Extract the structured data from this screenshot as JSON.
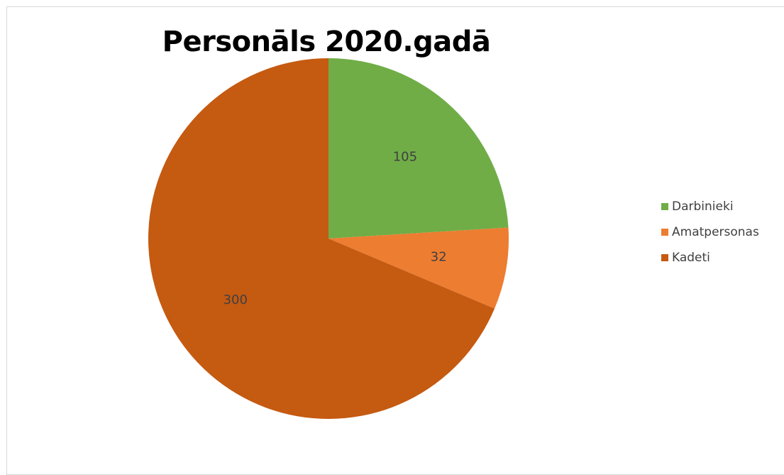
{
  "chart_data": {
    "type": "pie",
    "title": "Personāls 2020.gadā",
    "categories": [
      "Darbinieki",
      "Amatpersonas",
      "Kadeti"
    ],
    "values": [
      105,
      32,
      300
    ],
    "colors": [
      "#70ad47",
      "#ed7d31",
      "#c55a11"
    ],
    "data_labels": [
      "105",
      "32",
      "300"
    ],
    "start_angle_deg": 0,
    "direction": "clockwise",
    "legend": {
      "position": "right",
      "items": [
        {
          "label": "Darbinieki",
          "color": "#70ad47"
        },
        {
          "label": "Amatpersonas",
          "color": "#ed7d31"
        },
        {
          "label": "Kadeti",
          "color": "#c55a11"
        }
      ]
    }
  }
}
